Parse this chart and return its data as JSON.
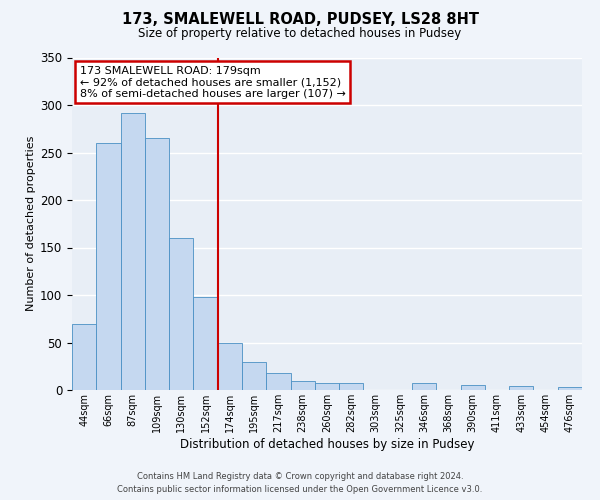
{
  "title": "173, SMALEWELL ROAD, PUDSEY, LS28 8HT",
  "subtitle": "Size of property relative to detached houses in Pudsey",
  "xlabel": "Distribution of detached houses by size in Pudsey",
  "ylabel": "Number of detached properties",
  "bar_labels": [
    "44sqm",
    "66sqm",
    "87sqm",
    "109sqm",
    "130sqm",
    "152sqm",
    "174sqm",
    "195sqm",
    "217sqm",
    "238sqm",
    "260sqm",
    "282sqm",
    "303sqm",
    "325sqm",
    "346sqm",
    "368sqm",
    "390sqm",
    "411sqm",
    "433sqm",
    "454sqm",
    "476sqm"
  ],
  "bar_heights": [
    70,
    260,
    292,
    265,
    160,
    98,
    49,
    29,
    18,
    10,
    7,
    7,
    0,
    0,
    7,
    0,
    5,
    0,
    4,
    0,
    3
  ],
  "bar_color": "#c5d8f0",
  "bar_edge_color": "#4a90c4",
  "vline_x": 6,
  "vline_color": "#cc0000",
  "annotation_title": "173 SMALEWELL ROAD: 179sqm",
  "annotation_line1": "← 92% of detached houses are smaller (1,152)",
  "annotation_line2": "8% of semi-detached houses are larger (107) →",
  "annotation_box_color": "#ffffff",
  "annotation_box_edge": "#cc0000",
  "ylim": [
    0,
    350
  ],
  "yticks": [
    0,
    50,
    100,
    150,
    200,
    250,
    300,
    350
  ],
  "background_color": "#e8eef6",
  "fig_background_color": "#f0f4fa",
  "footer_line1": "Contains HM Land Registry data © Crown copyright and database right 2024.",
  "footer_line2": "Contains public sector information licensed under the Open Government Licence v3.0."
}
